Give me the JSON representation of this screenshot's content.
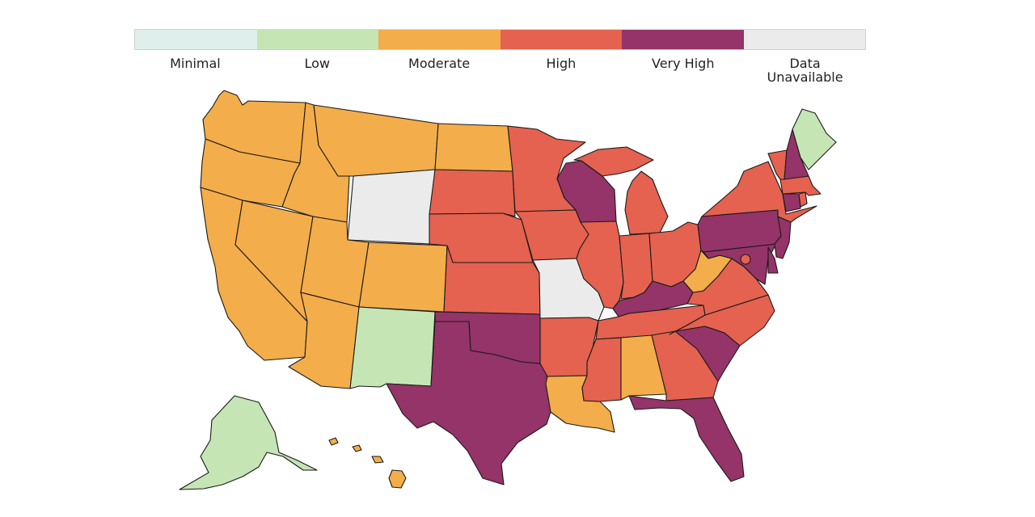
{
  "legend": {
    "categories": [
      {
        "key": "minimal",
        "label": "Minimal",
        "color": "#dff0ec"
      },
      {
        "key": "low",
        "label": "Low",
        "color": "#c5e5b5"
      },
      {
        "key": "moderate",
        "label": "Moderate",
        "color": "#f3ad4a"
      },
      {
        "key": "high",
        "label": "High",
        "color": "#e4624f"
      },
      {
        "key": "very_high",
        "label": "Very High",
        "color": "#943468"
      },
      {
        "key": "unavailable",
        "label": "Data\nUnavailable",
        "color": "#ebebeb"
      }
    ]
  },
  "state_levels": {
    "WA": "moderate",
    "OR": "moderate",
    "CA": "moderate",
    "NV": "moderate",
    "ID": "moderate",
    "MT": "moderate",
    "WY": "unavailable",
    "UT": "moderate",
    "AZ": "moderate",
    "CO": "moderate",
    "NM": "low",
    "ND": "moderate",
    "SD": "high",
    "NE": "high",
    "KS": "high",
    "OK": "very_high",
    "TX": "very_high",
    "MN": "high",
    "IA": "high",
    "MO": "unavailable",
    "AR": "high",
    "LA": "moderate",
    "WI": "very_high",
    "IL": "high",
    "MI": "high",
    "IN": "high",
    "OH": "high",
    "KY": "very_high",
    "TN": "high",
    "MS": "high",
    "AL": "moderate",
    "GA": "high",
    "FL": "very_high",
    "SC": "very_high",
    "NC": "high",
    "VA": "high",
    "WV": "moderate",
    "MD": "very_high",
    "DE": "very_high",
    "DC": "high",
    "PA": "very_high",
    "NJ": "very_high",
    "NY": "high",
    "CT": "very_high",
    "RI": "high",
    "MA": "high",
    "VT": "high",
    "NH": "very_high",
    "ME": "low",
    "AK": "low",
    "HI": "moderate"
  }
}
